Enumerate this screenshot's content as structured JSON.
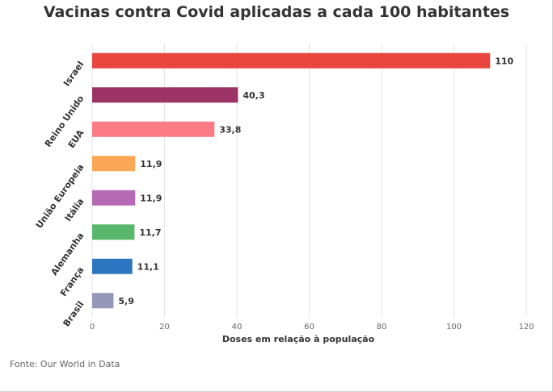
{
  "chart_data": {
    "type": "bar",
    "orientation": "horizontal",
    "title": "Vacinas contra Covid aplicadas a cada 100 habitantes",
    "xlabel": "Doses em relação à população",
    "ylabel": "",
    "categories": [
      "Israel",
      "Reino Unido",
      "EUA",
      "União Europeia",
      "Itália",
      "Alemanha",
      "França",
      "Brasil"
    ],
    "values": [
      110,
      40.3,
      33.8,
      11.9,
      11.9,
      11.7,
      11.1,
      5.9
    ],
    "value_labels": [
      "110",
      "40,3",
      "33,8",
      "11,9",
      "11,9",
      "11,7",
      "11,1",
      "5,9"
    ],
    "colors": [
      "#ea4640",
      "#9c3366",
      "#fb7c85",
      "#fba856",
      "#b56ab6",
      "#58b76b",
      "#2c76c0",
      "#9497b7"
    ],
    "xlim": [
      0,
      120
    ],
    "x_ticks": [
      "0",
      "20",
      "40",
      "60",
      "80",
      "100",
      "120"
    ],
    "grid": true
  },
  "footer": {
    "source": "Fonte: Our World in Data"
  }
}
